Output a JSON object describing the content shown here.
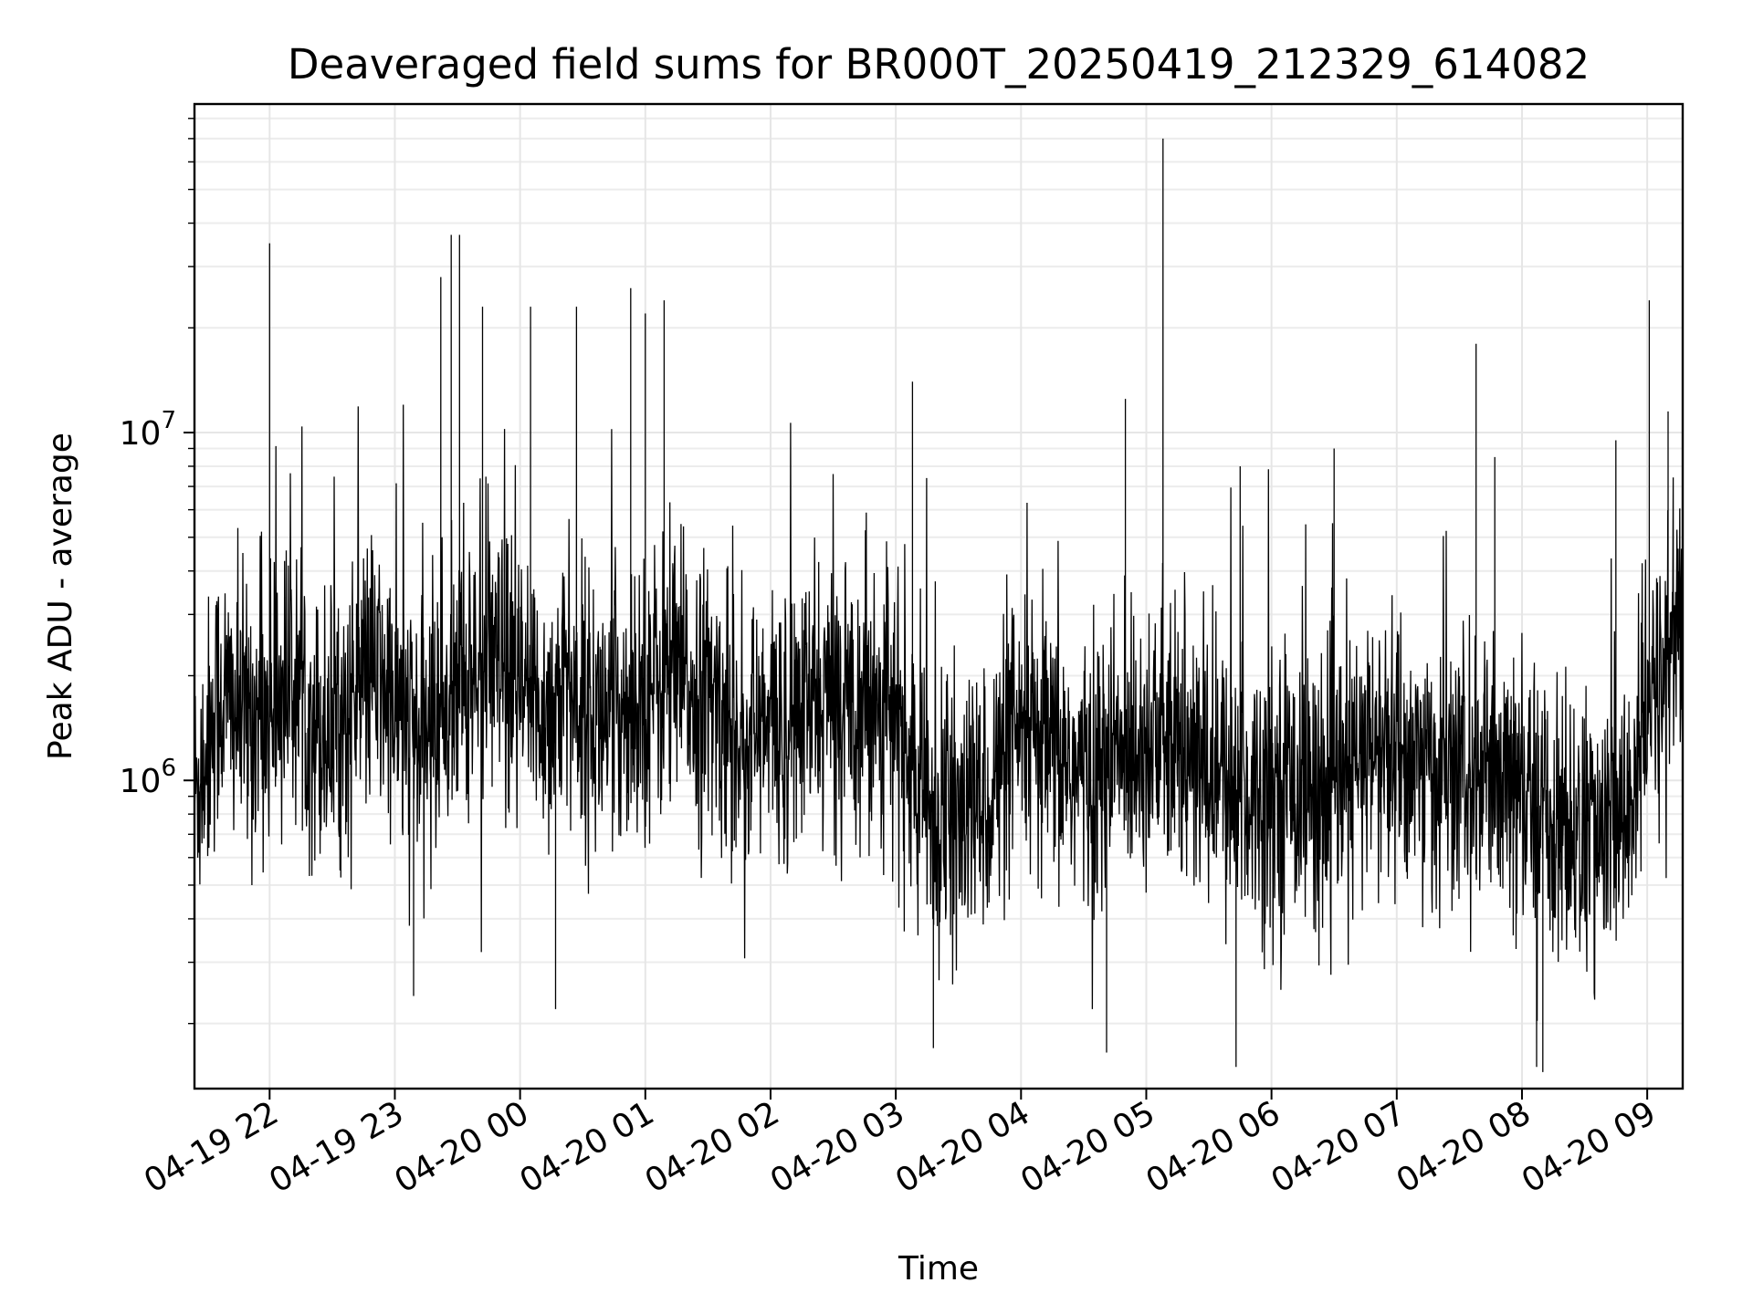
{
  "chart_data": {
    "type": "line",
    "title": "Deaveraged field sums for BR000T_20250419_212329_614082",
    "xlabel": "Time",
    "ylabel": "Peak ADU - average",
    "x_range": [
      "2025-04-19 21:24",
      "2025-04-20 09:17"
    ],
    "y_scale": "log",
    "ylim": [
      130000,
      88000000
    ],
    "grid": true,
    "x_ticks": [
      "04-19 22",
      "04-19 23",
      "04-20 00",
      "04-20 01",
      "04-20 02",
      "04-20 03",
      "04-20 04",
      "04-20 05",
      "04-20 06",
      "04-20 07",
      "04-20 08",
      "04-20 09"
    ],
    "y_ticks": [
      {
        "base": "10",
        "exp": "6",
        "value": 1000000
      },
      {
        "base": "10",
        "exp": "7",
        "value": 10000000
      }
    ],
    "line_color": "#000000",
    "series": [
      {
        "x": [
          "2025-04-19 21:24",
          "2025-04-19 21:36",
          "2025-04-19 21:48",
          "2025-04-19 22:00",
          "2025-04-19 22:12",
          "2025-04-19 22:24",
          "2025-04-19 22:36",
          "2025-04-19 22:48",
          "2025-04-19 23:00",
          "2025-04-19 23:12",
          "2025-04-19 23:24",
          "2025-04-19 23:36",
          "2025-04-19 23:48",
          "2025-04-20 00:00",
          "2025-04-20 00:12",
          "2025-04-20 00:24",
          "2025-04-20 00:36",
          "2025-04-20 00:48",
          "2025-04-20 01:00",
          "2025-04-20 01:12",
          "2025-04-20 01:24",
          "2025-04-20 01:36",
          "2025-04-20 01:48",
          "2025-04-20 02:00",
          "2025-04-20 02:12",
          "2025-04-20 02:24",
          "2025-04-20 02:36",
          "2025-04-20 02:48",
          "2025-04-20 03:00",
          "2025-04-20 03:12",
          "2025-04-20 03:24",
          "2025-04-20 03:36",
          "2025-04-20 03:48",
          "2025-04-20 04:00",
          "2025-04-20 04:12",
          "2025-04-20 04:24",
          "2025-04-20 04:36",
          "2025-04-20 04:48",
          "2025-04-20 05:00",
          "2025-04-20 05:12",
          "2025-04-20 05:24",
          "2025-04-20 05:36",
          "2025-04-20 05:48",
          "2025-04-20 06:00",
          "2025-04-20 06:12",
          "2025-04-20 06:24",
          "2025-04-20 06:36",
          "2025-04-20 06:48",
          "2025-04-20 07:00",
          "2025-04-20 07:12",
          "2025-04-20 07:24",
          "2025-04-20 07:36",
          "2025-04-20 07:48",
          "2025-04-20 08:00",
          "2025-04-20 08:12",
          "2025-04-20 08:24",
          "2025-04-20 08:36",
          "2025-04-20 08:48",
          "2025-04-20 09:00",
          "2025-04-20 09:12"
        ],
        "y": [
          900000,
          1800000,
          1500000,
          1600000,
          2000000,
          1400000,
          1500000,
          2100000,
          1600000,
          1300000,
          1700000,
          2000000,
          2100000,
          1700000,
          1600000,
          1800000,
          1500000,
          1600000,
          1800000,
          2000000,
          1800000,
          1600000,
          1300000,
          1400000,
          1500000,
          1700000,
          1700000,
          1800000,
          1500000,
          900000,
          700000,
          800000,
          1000000,
          1300000,
          1200000,
          1100000,
          1000000,
          1200000,
          1400000,
          1200000,
          1100000,
          1000000,
          900000,
          1000000,
          1000000,
          900000,
          1000000,
          1200000,
          1200000,
          1100000,
          1000000,
          1000000,
          900000,
          900000,
          800000,
          700000,
          700000,
          700000,
          1500000,
          2500000
        ]
      }
    ],
    "notable_spikes": [
      {
        "x": "2025-04-19 22:00",
        "y": 35000000
      },
      {
        "x": "2025-04-19 23:22",
        "y": 28000000
      },
      {
        "x": "2025-04-19 23:27",
        "y": 37000000
      },
      {
        "x": "2025-04-19 23:31",
        "y": 37000000
      },
      {
        "x": "2025-04-19 23:42",
        "y": 23000000
      },
      {
        "x": "2025-04-20 00:05",
        "y": 23000000
      },
      {
        "x": "2025-04-20 00:27",
        "y": 23000000
      },
      {
        "x": "2025-04-20 00:53",
        "y": 26000000
      },
      {
        "x": "2025-04-20 01:00",
        "y": 22000000
      },
      {
        "x": "2025-04-20 01:09",
        "y": 24000000
      },
      {
        "x": "2025-04-20 03:08",
        "y": 14000000
      },
      {
        "x": "2025-04-20 04:50",
        "y": 12500000
      },
      {
        "x": "2025-04-20 05:08",
        "y": 70000000
      },
      {
        "x": "2025-04-20 05:45",
        "y": 8000000
      },
      {
        "x": "2025-04-20 06:30",
        "y": 9000000
      },
      {
        "x": "2025-04-20 07:38",
        "y": 18000000
      },
      {
        "x": "2025-04-20 07:47",
        "y": 8500000
      },
      {
        "x": "2025-04-20 08:45",
        "y": 9500000
      },
      {
        "x": "2025-04-20 09:01",
        "y": 24000000
      },
      {
        "x": "2025-04-20 09:10",
        "y": 11500000
      }
    ],
    "notable_dips": [
      {
        "x": "2025-04-19 23:09",
        "y": 240000
      },
      {
        "x": "2025-04-20 00:17",
        "y": 220000
      },
      {
        "x": "2025-04-20 03:18",
        "y": 170000
      },
      {
        "x": "2025-04-20 04:41",
        "y": 165000
      },
      {
        "x": "2025-04-20 05:43",
        "y": 150000
      },
      {
        "x": "2025-04-20 08:07",
        "y": 150000
      },
      {
        "x": "2025-04-20 08:10",
        "y": 145000
      }
    ]
  }
}
